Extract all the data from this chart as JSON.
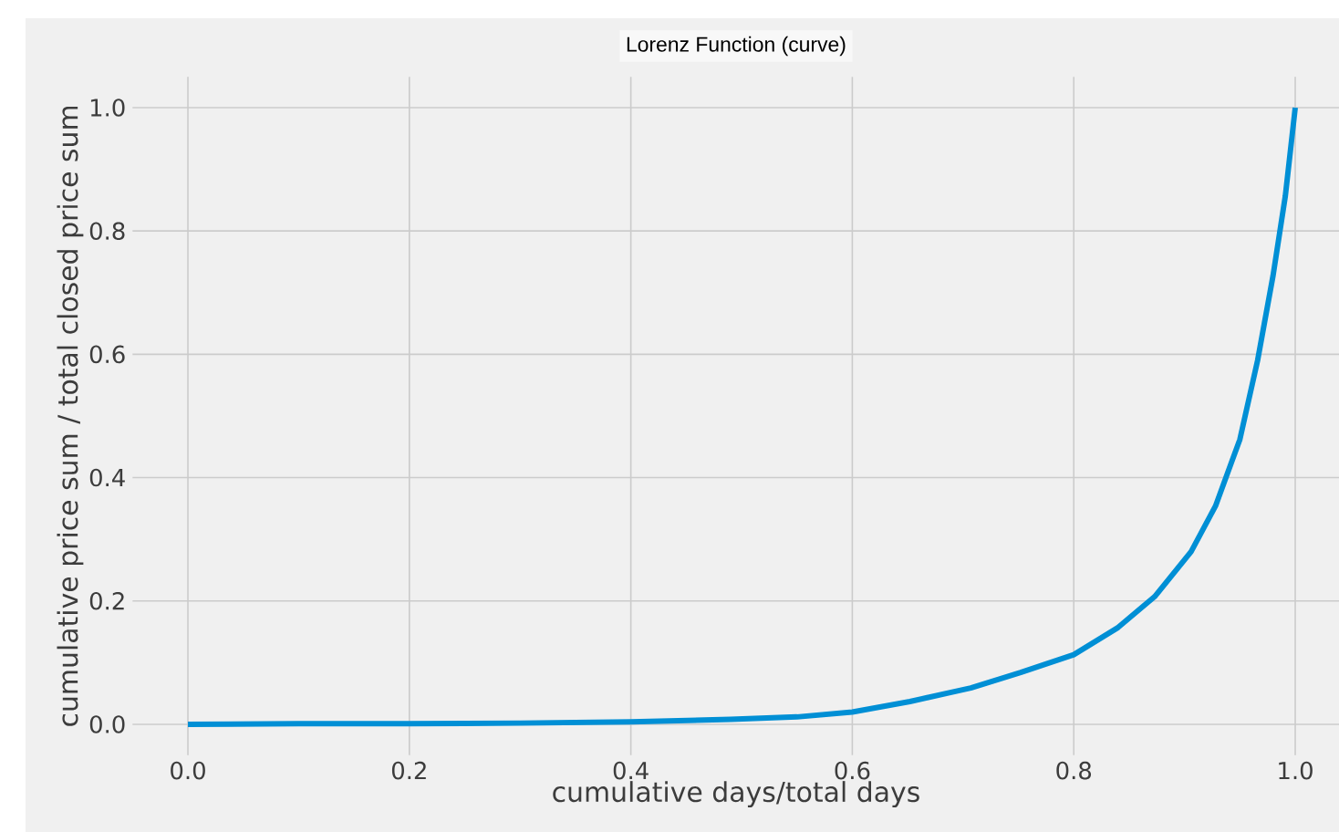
{
  "chart_data": {
    "type": "line",
    "title": "Lorenz Function (curve)",
    "xlabel": "cumulative days/total  days",
    "ylabel": "cumulative price sum / total closed price sum",
    "x": [
      0,
      0.1,
      0.2,
      0.3,
      0.4,
      0.49,
      0.55,
      0.6,
      0.652,
      0.707,
      0.752,
      0.8,
      0.84,
      0.873,
      0.906,
      0.928,
      0.95,
      0.966,
      0.98,
      0.991,
      1.0
    ],
    "series": [
      {
        "color": "#008fd5",
        "values": [
          0,
          0.001,
          0.001,
          0.002,
          0.004,
          0.008,
          0.012,
          0.02,
          0.037,
          0.059,
          0.084,
          0.113,
          0.157,
          0.207,
          0.28,
          0.354,
          0.462,
          0.59,
          0.728,
          0.856,
          1.0
        ]
      }
    ],
    "xlim": [
      -0.05,
      1.04
    ],
    "ylim": [
      -0.05,
      1.05
    ],
    "xticks": [
      {
        "value": 0,
        "label": "0.0"
      },
      {
        "value": 0.2,
        "label": "0.2"
      },
      {
        "value": 0.4,
        "label": "0.4"
      },
      {
        "value": 0.6,
        "label": "0.6"
      },
      {
        "value": 0.8,
        "label": "0.8"
      },
      {
        "value": 1,
        "label": "1.0"
      }
    ],
    "yticks": [
      {
        "value": 0,
        "label": "0.0"
      },
      {
        "value": 0.2,
        "label": "0.2"
      },
      {
        "value": 0.4,
        "label": "0.4"
      },
      {
        "value": 0.6,
        "label": "0.6"
      },
      {
        "value": 0.8,
        "label": "0.8"
      },
      {
        "value": 1,
        "label": "1.0"
      }
    ],
    "grid": true,
    "line_style": "solid"
  }
}
